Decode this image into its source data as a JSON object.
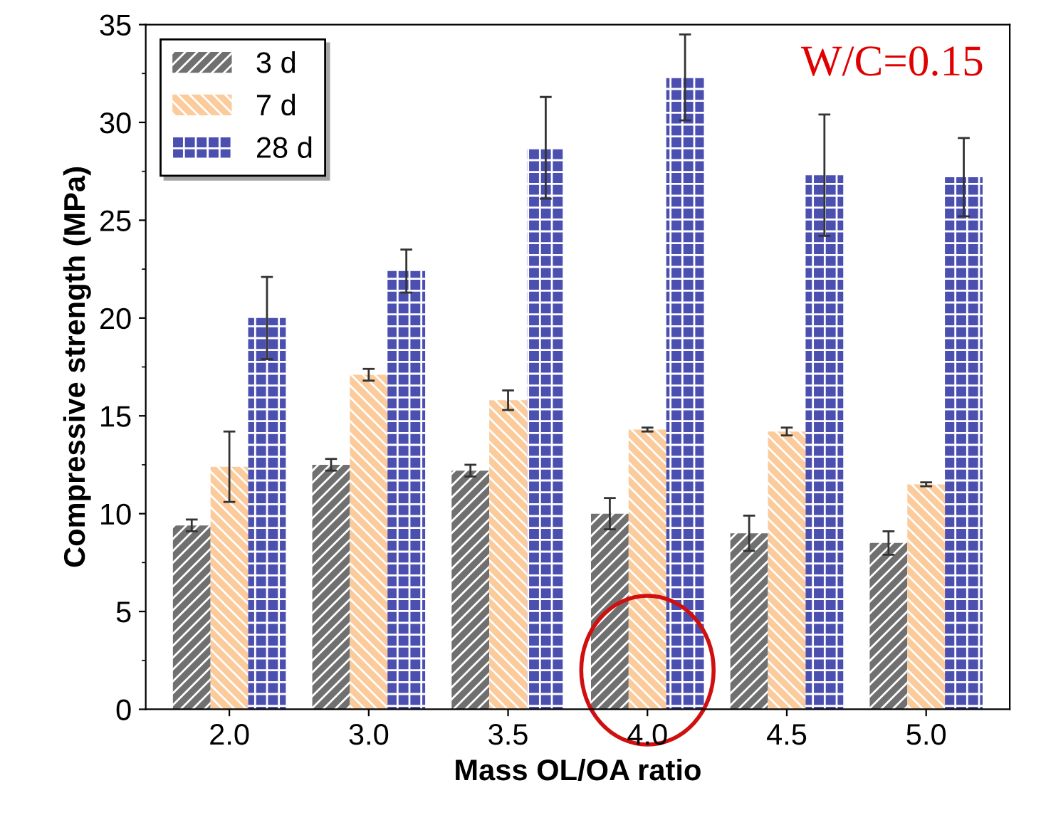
{
  "chart_data": {
    "type": "bar",
    "xlabel": "Mass OL/OA ratio",
    "ylabel": "Compressive strength (MPa)",
    "categories": [
      "2.0",
      "3.0",
      "3.5",
      "4.0",
      "4.5",
      "5.0"
    ],
    "series": [
      {
        "name": "3 d",
        "color": "#707070",
        "values": [
          9.4,
          12.5,
          12.2,
          10.0,
          9.0,
          8.5
        ],
        "errors": [
          0.3,
          0.3,
          0.3,
          0.8,
          0.9,
          0.6
        ]
      },
      {
        "name": "7 d",
        "color": "#fbcb9c",
        "values": [
          12.4,
          17.1,
          15.8,
          14.3,
          14.2,
          11.5
        ],
        "errors": [
          1.8,
          0.3,
          0.5,
          0.1,
          0.2,
          0.1
        ]
      },
      {
        "name": "28 d",
        "color": "#4a4fb0",
        "values": [
          20.0,
          22.4,
          28.7,
          32.3,
          27.3,
          27.2
        ],
        "errors": [
          2.1,
          1.1,
          2.6,
          2.2,
          3.1,
          2.0
        ]
      }
    ],
    "ylim": [
      0,
      35
    ],
    "yticks": [
      0,
      5,
      10,
      15,
      20,
      25,
      30,
      35
    ],
    "grid": false,
    "legend": "top left",
    "annotations": [
      "W/C=0.15"
    ]
  }
}
